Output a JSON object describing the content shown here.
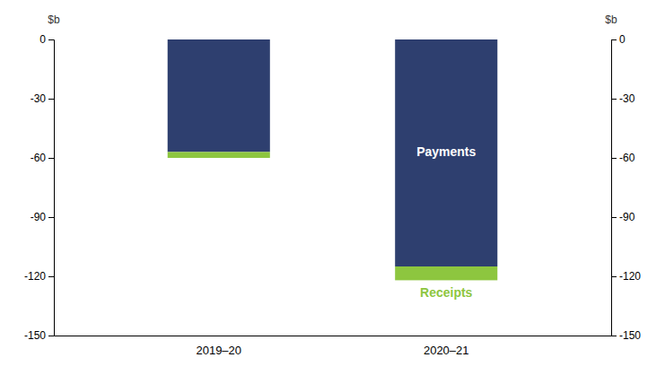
{
  "chart_data": {
    "type": "bar",
    "stacked": true,
    "categories": [
      "2019–20",
      "2020–21"
    ],
    "series": [
      {
        "name": "Payments",
        "color": "#2E3F6F",
        "values": [
          -57,
          -115
        ]
      },
      {
        "name": "Receipts",
        "color": "#8DC63F",
        "values": [
          -3,
          -7
        ]
      }
    ],
    "ylabel": "$b",
    "y2label": "$b",
    "ylim": [
      -150,
      0
    ],
    "yticks": [
      0,
      -30,
      -60,
      -90,
      -120,
      -150
    ],
    "y2lim": [
      -150,
      0
    ],
    "y2ticks": [
      0,
      -30,
      -60,
      -90,
      -120,
      -150
    ],
    "grid": false
  }
}
